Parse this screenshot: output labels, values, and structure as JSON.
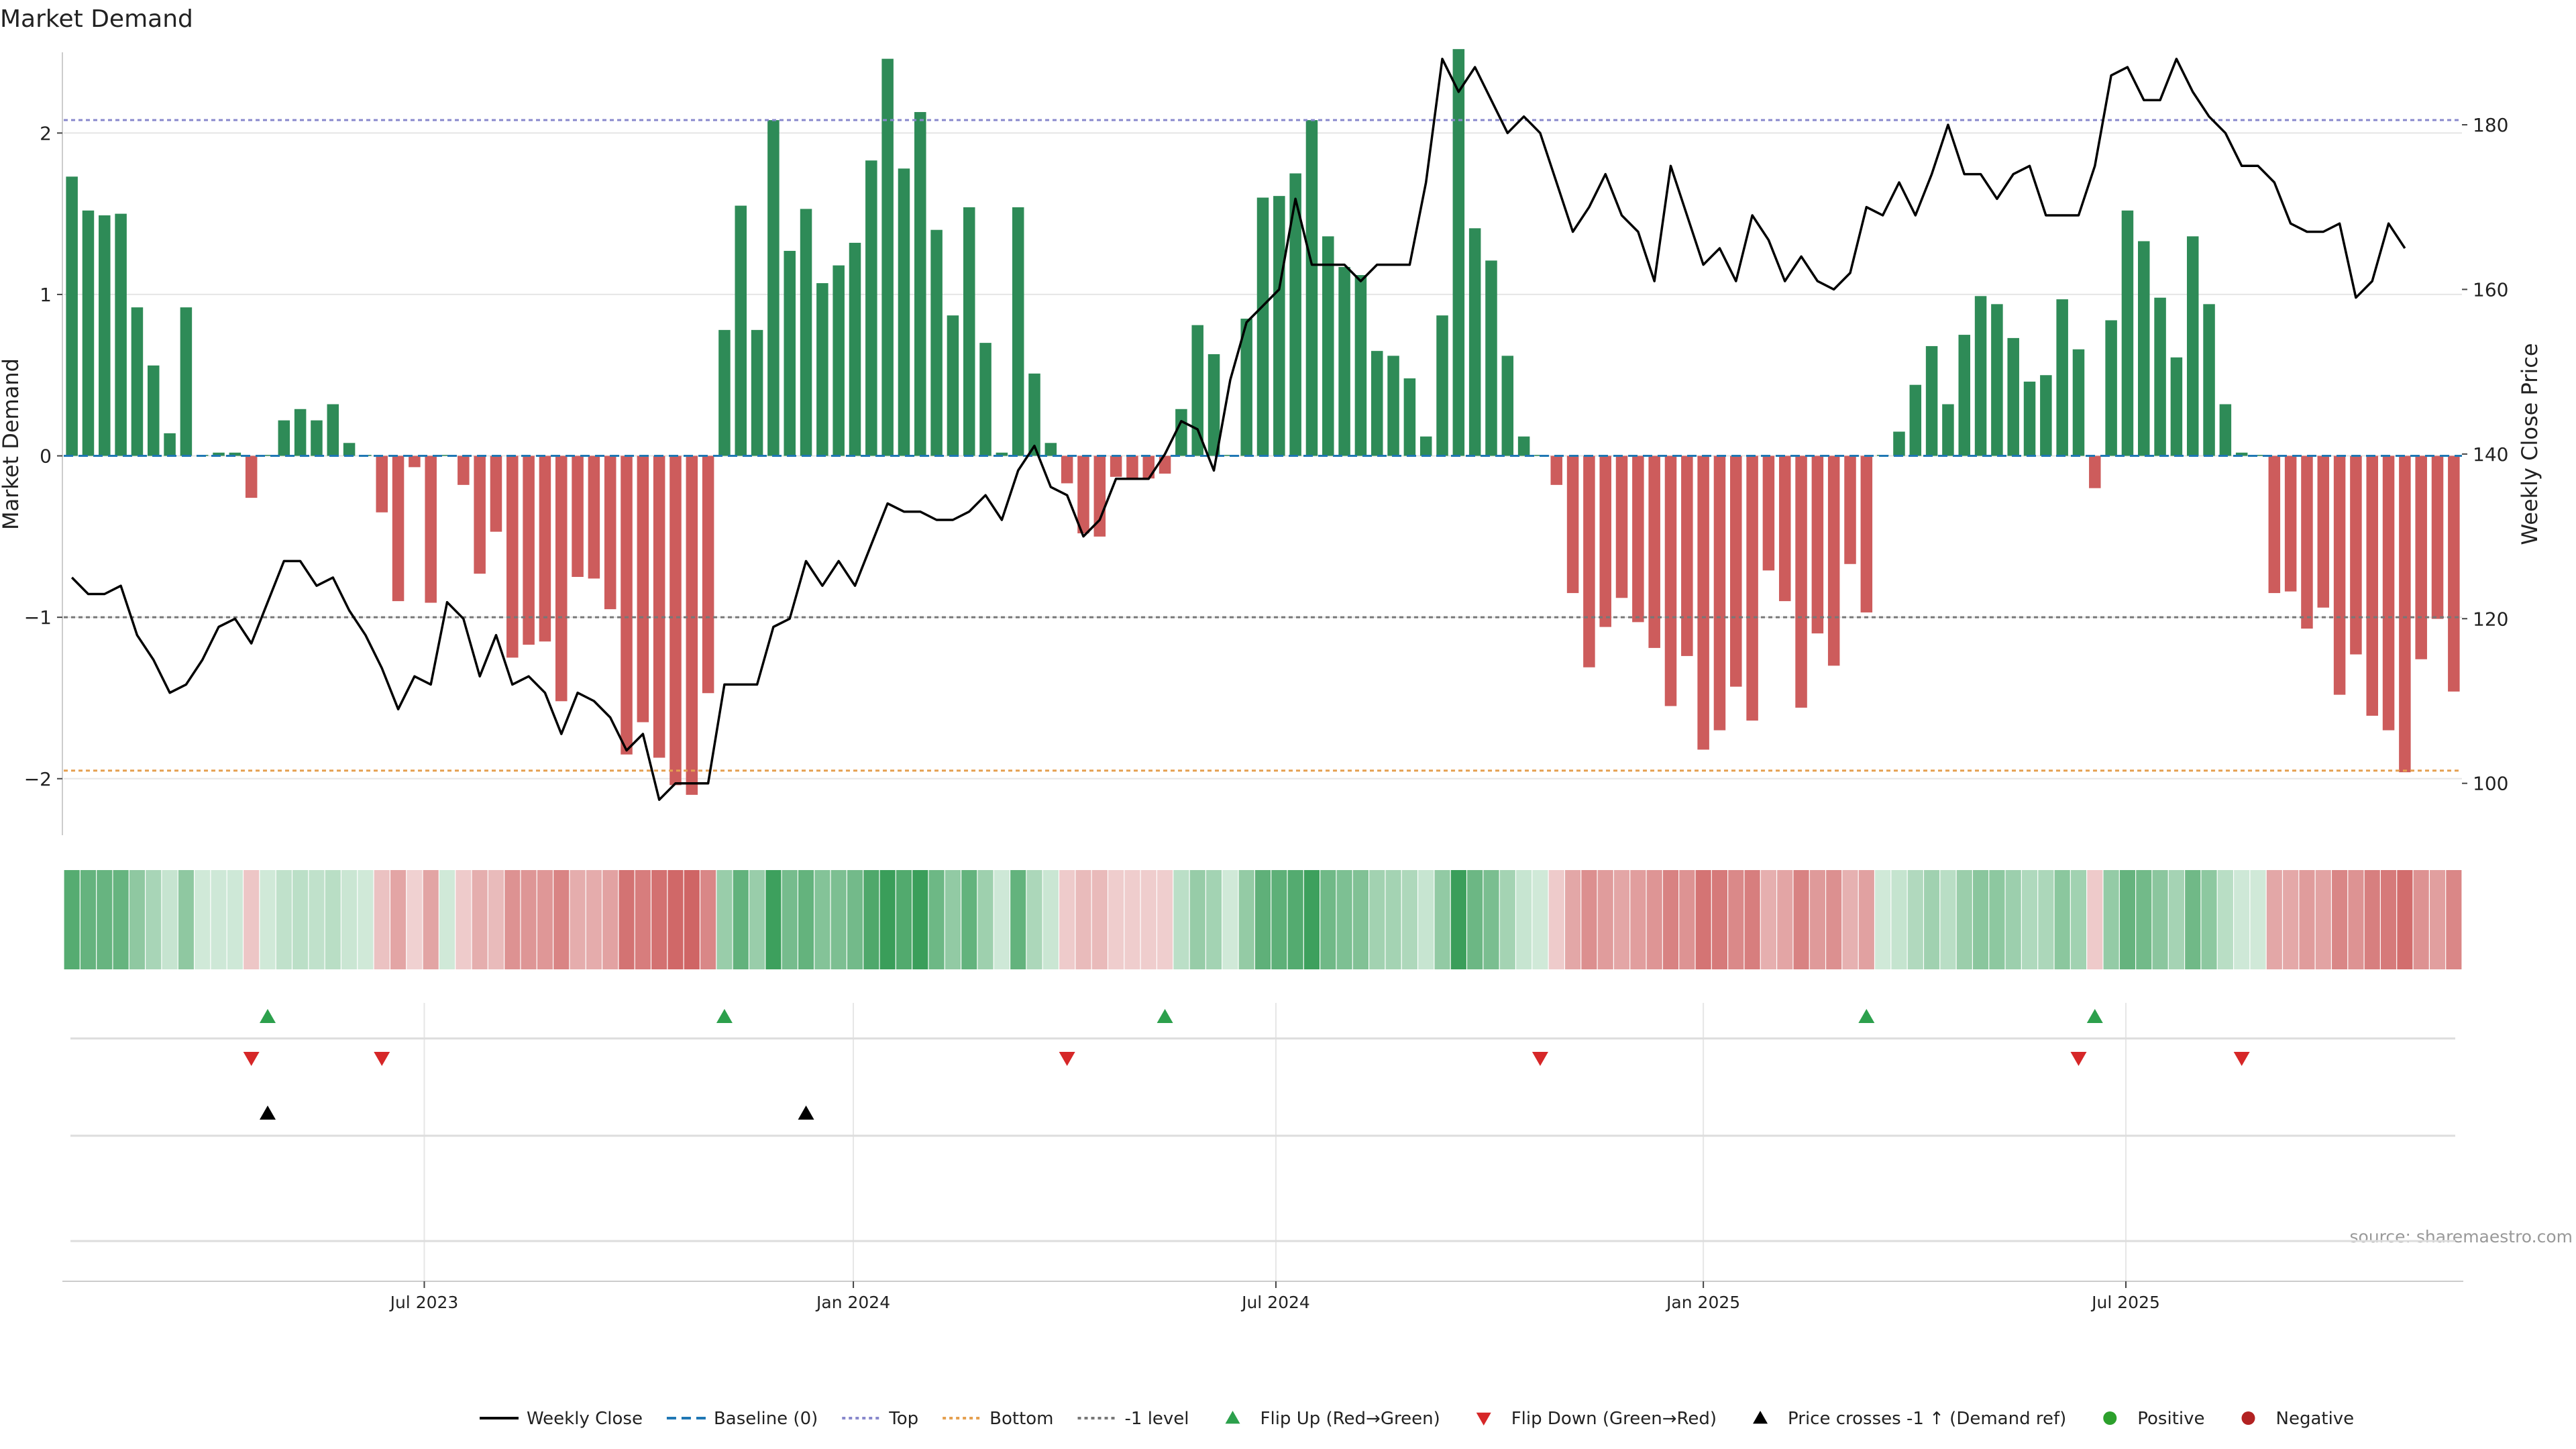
{
  "chart_data": {
    "type": "bar",
    "title": "Market Demand",
    "ylabel_left": "Market Demand",
    "ylabel_right": "Weekly Close Price",
    "source": "source: sharemaestro.com",
    "ylim_left": [
      -2.35,
      2.5
    ],
    "ylim_right": [
      93.7,
      188.8
    ],
    "yticks_left": [
      {
        "value": -2,
        "label": "−2"
      },
      {
        "value": -1,
        "label": "−1"
      },
      {
        "value": 0,
        "label": "0"
      },
      {
        "value": 1,
        "label": "1"
      },
      {
        "value": 2,
        "label": "2"
      }
    ],
    "yticks_right": [
      {
        "value": 100,
        "label": "100"
      },
      {
        "value": 120,
        "label": "120"
      },
      {
        "value": 140,
        "label": "140"
      },
      {
        "value": 160,
        "label": "160"
      },
      {
        "value": 180,
        "label": "180"
      }
    ],
    "xticks": [
      {
        "index": 21.6,
        "label": "Jul 2023"
      },
      {
        "index": 47.9,
        "label": "Jan 2024"
      },
      {
        "index": 73.8,
        "label": "Jul 2024"
      },
      {
        "index": 100.0,
        "label": "Jan 2025"
      },
      {
        "index": 125.9,
        "label": "Jul 2025"
      }
    ],
    "reference_lines": [
      {
        "name": "Top",
        "value": 2.08,
        "color": "#8888cc"
      },
      {
        "name": "-1 level",
        "value": -1.0,
        "color": "#777777"
      },
      {
        "name": "Bottom",
        "value": -1.95,
        "color": "#e5a050"
      }
    ],
    "demand": [
      1.73,
      1.52,
      1.49,
      1.5,
      0.92,
      0.56,
      0.14,
      0.92,
      0.0,
      0.02,
      0.02,
      -0.26,
      0.0,
      0.22,
      0.29,
      0.22,
      0.32,
      0.08,
      0.0,
      -0.35,
      -0.9,
      -0.07,
      -0.91,
      0.0,
      -0.18,
      -0.73,
      -0.47,
      -1.25,
      -1.17,
      -1.15,
      -1.52,
      -0.75,
      -0.76,
      -0.95,
      -1.85,
      -1.65,
      -1.87,
      -2.04,
      -2.1,
      -1.47,
      0.78,
      1.55,
      0.78,
      2.08,
      1.27,
      1.53,
      1.07,
      1.18,
      1.32,
      1.83,
      2.46,
      1.78,
      2.13,
      1.4,
      0.87,
      1.54,
      0.7,
      0.02,
      1.54,
      0.51,
      0.08,
      -0.17,
      -0.48,
      -0.5,
      -0.13,
      -0.14,
      -0.14,
      -0.11,
      0.29,
      0.81,
      0.63,
      0.0,
      0.85,
      1.6,
      1.61,
      1.75,
      2.08,
      1.36,
      1.17,
      1.12,
      0.65,
      0.62,
      0.48,
      0.12,
      0.87,
      2.52,
      1.41,
      1.21,
      0.62,
      0.12,
      0.0,
      -0.18,
      -0.85,
      -1.31,
      -1.06,
      -0.88,
      -1.03,
      -1.19,
      -1.55,
      -1.24,
      -1.82,
      -1.7,
      -1.43,
      -1.64,
      -0.71,
      -0.9,
      -1.56,
      -1.1,
      -1.3,
      -0.67,
      -0.97,
      0.0,
      0.15,
      0.44,
      0.68,
      0.32,
      0.75,
      0.99,
      0.94,
      0.73,
      0.46,
      0.5,
      0.97,
      0.66,
      -0.2,
      0.84,
      1.52,
      1.33,
      0.98,
      0.61,
      1.36,
      0.94,
      0.32,
      0.02,
      0.0,
      -0.85,
      -0.84,
      -1.07,
      -0.94,
      -1.48,
      -1.23,
      -1.61,
      -1.7,
      -1.96,
      -1.26,
      -1.01,
      -1.46
    ],
    "close": [
      125,
      123,
      123,
      124,
      118,
      115,
      111,
      112,
      115,
      119,
      120,
      117,
      122,
      127,
      127,
      124,
      125,
      121,
      118,
      114,
      109,
      113,
      112,
      122,
      120,
      113,
      118,
      112,
      113,
      111,
      106,
      111,
      110,
      108,
      104,
      106,
      98,
      100,
      100,
      100,
      112,
      112,
      112,
      119,
      120,
      127,
      124,
      127,
      124,
      129,
      134,
      133,
      133,
      132,
      132,
      133,
      135,
      132,
      138,
      141,
      136,
      135,
      130,
      132,
      137,
      137,
      137,
      140,
      144,
      143,
      138,
      149,
      156,
      158,
      160,
      171,
      163,
      163,
      163,
      161,
      163,
      163,
      163,
      173,
      188,
      184,
      187,
      183,
      179,
      181,
      179,
      173,
      167,
      170,
      174,
      169,
      167,
      161,
      175,
      169,
      163,
      165,
      161,
      169,
      166,
      161,
      164,
      161,
      160,
      162,
      170,
      169,
      173,
      169,
      174,
      180,
      174,
      174,
      171,
      174,
      175,
      169,
      169,
      169,
      175,
      186,
      187,
      183,
      183,
      188,
      184,
      181,
      179,
      175,
      175,
      173,
      168,
      167,
      167,
      168,
      159,
      161,
      168,
      165
    ],
    "flip_up_index": [
      12,
      40,
      67,
      110,
      124
    ],
    "flip_down_index": [
      11,
      19,
      61,
      90,
      123,
      133
    ],
    "price_cross_index": [
      12,
      45
    ],
    "legend": [
      {
        "name": "Weekly Close",
        "style": "line",
        "color": "#000000"
      },
      {
        "name": "Baseline (0)",
        "style": "dashed",
        "color": "#1f77b4"
      },
      {
        "name": "Top",
        "style": "dotted",
        "color": "#8888cc"
      },
      {
        "name": "Bottom",
        "style": "dotted",
        "color": "#e5a050"
      },
      {
        "name": "-1 level",
        "style": "dotted",
        "color": "#777777"
      },
      {
        "name": "Flip Up (Red→Green)",
        "style": "triangle-up",
        "color": "#2ca04c"
      },
      {
        "name": "Flip Down (Green→Red)",
        "style": "triangle-down",
        "color": "#d62728"
      },
      {
        "name": "Price crosses -1 ↑ (Demand ref)",
        "style": "triangle-up",
        "color": "#000000"
      },
      {
        "name": "Positive",
        "style": "dot",
        "color": "#2ca02c"
      },
      {
        "name": "Negative",
        "style": "dot",
        "color": "#b22222"
      }
    ],
    "colors": {
      "positive_bar": "#2e8b57",
      "negative_bar": "#cd5c5c",
      "close_line": "#000000",
      "baseline": "#1f77b4"
    }
  }
}
